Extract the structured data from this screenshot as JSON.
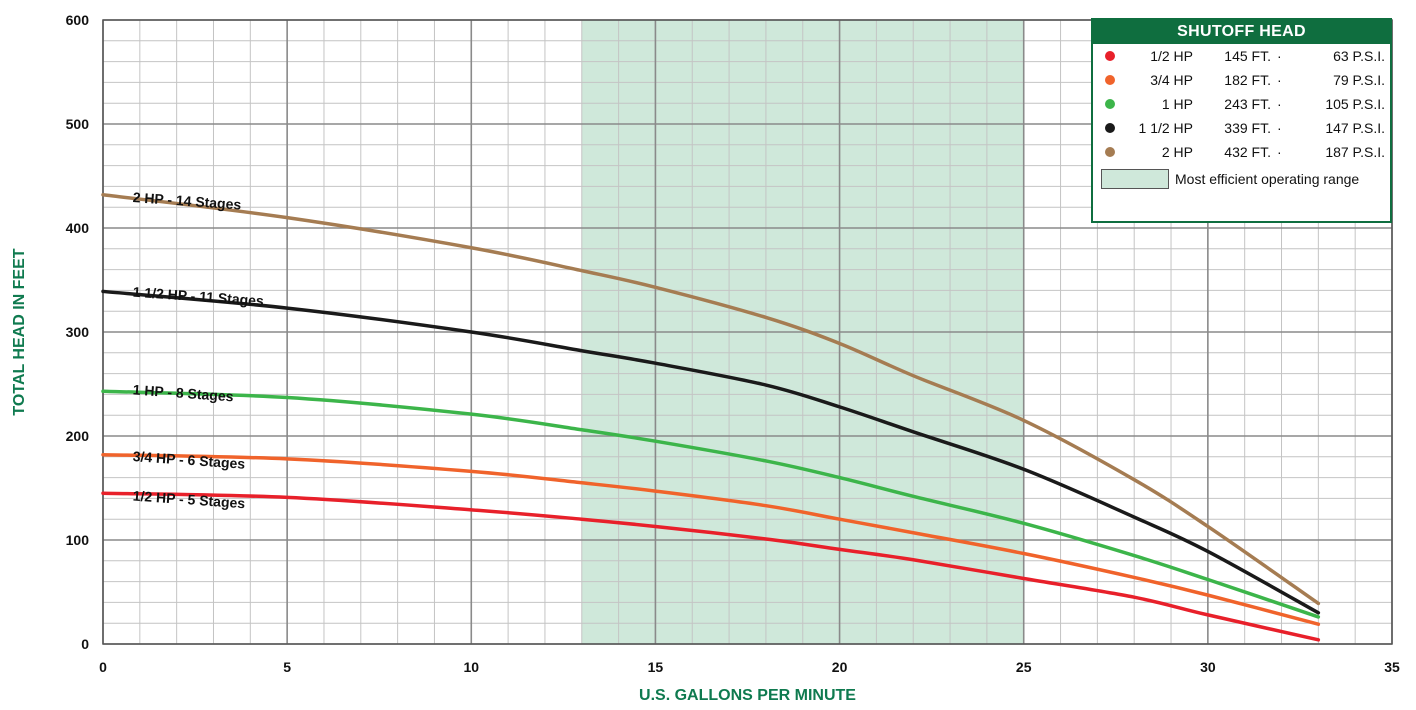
{
  "chart_data": {
    "type": "line",
    "title": "",
    "xlabel": "U.S. GALLONS PER MINUTE",
    "ylabel": "TOTAL HEAD IN FEET",
    "xlim": [
      0,
      35
    ],
    "ylim": [
      0,
      600
    ],
    "x_ticks": [
      0,
      5,
      10,
      15,
      20,
      25,
      30,
      35
    ],
    "y_ticks": [
      0,
      100,
      200,
      300,
      400,
      500,
      600
    ],
    "grid": true,
    "efficient_range": {
      "x_start": 13,
      "x_end": 25,
      "color": "#cfe8da"
    },
    "series": [
      {
        "name": "1/2 HP - 5 Stages",
        "color": "#e8202a",
        "points": [
          [
            0,
            145
          ],
          [
            5,
            141
          ],
          [
            10,
            129
          ],
          [
            13,
            120
          ],
          [
            15,
            113
          ],
          [
            18,
            101
          ],
          [
            20,
            91
          ],
          [
            22,
            81
          ],
          [
            25,
            63
          ],
          [
            28,
            45
          ],
          [
            30,
            28
          ],
          [
            33,
            4
          ]
        ]
      },
      {
        "name": "3/4 HP - 6 Stages",
        "color": "#f0632b",
        "points": [
          [
            0,
            182
          ],
          [
            5,
            178
          ],
          [
            10,
            166
          ],
          [
            13,
            155
          ],
          [
            15,
            147
          ],
          [
            18,
            133
          ],
          [
            20,
            120
          ],
          [
            22,
            107
          ],
          [
            25,
            87
          ],
          [
            28,
            64
          ],
          [
            30,
            47
          ],
          [
            33,
            19
          ]
        ]
      },
      {
        "name": "1 HP - 8 Stages",
        "color": "#3cb54a",
        "points": [
          [
            0,
            243
          ],
          [
            5,
            237
          ],
          [
            10,
            221
          ],
          [
            13,
            206
          ],
          [
            15,
            195
          ],
          [
            18,
            176
          ],
          [
            20,
            160
          ],
          [
            22,
            142
          ],
          [
            25,
            116
          ],
          [
            28,
            85
          ],
          [
            30,
            62
          ],
          [
            33,
            26
          ]
        ]
      },
      {
        "name": "1 1/2 HP - 11 Stages",
        "color": "#1a1a1a",
        "points": [
          [
            0,
            339
          ],
          [
            5,
            323
          ],
          [
            10,
            300
          ],
          [
            13,
            282
          ],
          [
            15,
            270
          ],
          [
            18,
            249
          ],
          [
            20,
            228
          ],
          [
            22,
            204
          ],
          [
            25,
            168
          ],
          [
            28,
            122
          ],
          [
            30,
            89
          ],
          [
            33,
            30
          ]
        ]
      },
      {
        "name": "2 HP - 14 Stages",
        "color": "#a57c52",
        "points": [
          [
            0,
            432
          ],
          [
            5,
            410
          ],
          [
            10,
            381
          ],
          [
            13,
            359
          ],
          [
            15,
            343
          ],
          [
            18,
            314
          ],
          [
            20,
            289
          ],
          [
            22,
            258
          ],
          [
            25,
            215
          ],
          [
            28,
            158
          ],
          [
            30,
            113
          ],
          [
            33,
            39
          ]
        ]
      }
    ],
    "curve_labels": [
      {
        "text": "2 HP - 14 Stages",
        "x": 0.8,
        "y": 425
      },
      {
        "text": "1 1/2 HP - 11 Stages",
        "x": 0.8,
        "y": 334
      },
      {
        "text": "1 HP - 8 Stages",
        "x": 0.8,
        "y": 240
      },
      {
        "text": "3/4 HP - 6 Stages",
        "x": 0.8,
        "y": 176
      },
      {
        "text": "1/2 HP - 5 Stages",
        "x": 0.8,
        "y": 138
      }
    ],
    "legend": {
      "title": "SHUTOFF HEAD",
      "position": "top-right",
      "rows": [
        {
          "hp": "1/2 HP",
          "ft": "145 FT.",
          "sep": "·",
          "psi": "63 P.S.I.",
          "color": "#e8202a"
        },
        {
          "hp": "3/4 HP",
          "ft": "182 FT.",
          "sep": "·",
          "psi": "79 P.S.I.",
          "color": "#f0632b"
        },
        {
          "hp": "1 HP",
          "ft": "243 FT.",
          "sep": "·",
          "psi": "105 P.S.I.",
          "color": "#3cb54a"
        },
        {
          "hp": "1 1/2 HP",
          "ft": "339 FT.",
          "sep": "·",
          "psi": "147 P.S.I.",
          "color": "#1a1a1a"
        },
        {
          "hp": "2 HP",
          "ft": "432 FT.",
          "sep": "·",
          "psi": "187 P.S.I.",
          "color": "#a57c52"
        }
      ],
      "efficient_label": "Most efficient operating range"
    }
  }
}
